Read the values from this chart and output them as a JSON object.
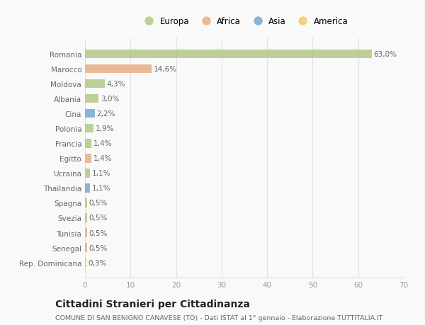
{
  "categories": [
    "Romania",
    "Marocco",
    "Moldova",
    "Albania",
    "Cina",
    "Polonia",
    "Francia",
    "Egitto",
    "Ucraina",
    "Thailandia",
    "Spagna",
    "Svezia",
    "Tunisia",
    "Senegal",
    "Rep. Dominicana"
  ],
  "values": [
    63.0,
    14.6,
    4.3,
    3.0,
    2.2,
    1.9,
    1.4,
    1.4,
    1.1,
    1.1,
    0.5,
    0.5,
    0.5,
    0.5,
    0.3
  ],
  "labels": [
    "63,0%",
    "14,6%",
    "4,3%",
    "3,0%",
    "2,2%",
    "1,9%",
    "1,4%",
    "1,4%",
    "1,1%",
    "1,1%",
    "0,5%",
    "0,5%",
    "0,5%",
    "0,5%",
    "0,3%"
  ],
  "continents": [
    "Europa",
    "Africa",
    "Europa",
    "Europa",
    "Asia",
    "Europa",
    "Europa",
    "Africa",
    "Europa",
    "Asia",
    "Europa",
    "Europa",
    "Africa",
    "Africa",
    "America"
  ],
  "colors": {
    "Europa": "#b5cb8b",
    "Africa": "#e8b48a",
    "Asia": "#7baed4",
    "America": "#f0d070"
  },
  "xlim": [
    0,
    70
  ],
  "xticks": [
    0,
    10,
    20,
    30,
    40,
    50,
    60,
    70
  ],
  "title": "Cittadini Stranieri per Cittadinanza",
  "subtitle": "COMUNE DI SAN BENIGNO CANAVESE (TO) - Dati ISTAT al 1° gennaio - Elaborazione TUTTITALIA.IT",
  "background_color": "#f9f9f9",
  "grid_color": "#e0e0e0",
  "bar_height": 0.6,
  "label_fontsize": 7.5,
  "ytick_fontsize": 7.5,
  "xtick_fontsize": 7.5,
  "title_fontsize": 10,
  "subtitle_fontsize": 6.8,
  "legend_fontsize": 8.5,
  "legend_marker_size": 10
}
